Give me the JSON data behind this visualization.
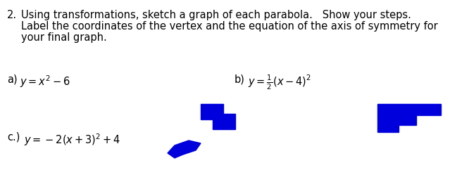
{
  "background_color": "#ffffff",
  "text_color": "#000000",
  "font_size_main": 10.5,
  "number": "2.",
  "line1": "Using transformations, sketch a graph of each parabola.   Show your steps.",
  "line2": "Label the coordinates of the vertex and the equation of the axis of symmetry for",
  "line3": "your final graph.",
  "item_a_label": "a)",
  "item_a_eq": "$y = x^2 - 6$",
  "item_b_label": "b)",
  "item_b_eq": "$y = \\frac{1}{2}(x - 4)^2$",
  "item_c_label": "c.)",
  "item_c_eq": "$y = -2(x + 3)^2 + 4$",
  "blue_color": "#0000dd",
  "fig_width": 6.66,
  "fig_height": 2.62,
  "dpi": 100
}
